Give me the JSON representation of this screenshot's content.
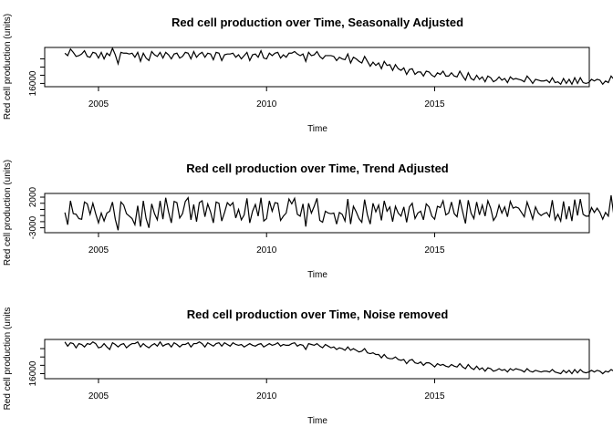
{
  "chart_data": [
    {
      "type": "line",
      "title": "Red cell production over Time, Seasonally Adjusted",
      "xlabel": "Time",
      "ylabel": "Red cell production (units)",
      "xlim": [
        2003.4,
        2019.6
      ],
      "ylim": [
        15600,
        20400
      ],
      "x_ticks": [
        2005,
        2010,
        2015
      ],
      "y_ticks": [
        16000
      ],
      "y_tick_labels": [
        "16000"
      ],
      "y_minor_ticks": [
        17000,
        18000,
        19000
      ],
      "x_start": 2004.0,
      "frequency": 12,
      "values": [
        19700,
        19400,
        20200,
        19800,
        19300,
        19400,
        19600,
        20000,
        19300,
        19200,
        19800,
        19700,
        19100,
        19800,
        19000,
        19700,
        19400,
        20300,
        19500,
        18400,
        19800,
        19700,
        19700,
        19600,
        19700,
        19200,
        19800,
        18700,
        19700,
        19100,
        18800,
        19900,
        19500,
        19300,
        19800,
        19100,
        19800,
        19500,
        19000,
        19600,
        19700,
        19100,
        19300,
        19800,
        19700,
        19000,
        19900,
        19200,
        19600,
        19800,
        19200,
        19700,
        19600,
        18900,
        19800,
        19700,
        18800,
        19500,
        19600,
        19600,
        19700,
        19200,
        19500,
        19000,
        19400,
        19800,
        18800,
        19500,
        19600,
        19200,
        20000,
        19100,
        19000,
        19700,
        19400,
        19700,
        19800,
        19100,
        19500,
        19200,
        19700,
        19700,
        19900,
        19600,
        19400,
        19600,
        18700,
        19800,
        19400,
        19500,
        19900,
        19300,
        19000,
        19400,
        19400,
        19400,
        19300,
        18800,
        19200,
        19000,
        18900,
        19600,
        18500,
        19200,
        19000,
        18700,
        18500,
        19300,
        18700,
        18100,
        18600,
        18200,
        18500,
        17800,
        18700,
        18200,
        18300,
        17600,
        18300,
        17800,
        17600,
        17900,
        17100,
        17700,
        17800,
        17100,
        17400,
        17400,
        16900,
        17500,
        17400,
        17000,
        16800,
        17300,
        17100,
        17500,
        16900,
        16900,
        17300,
        16900,
        16800,
        17500,
        16900,
        16400,
        17300,
        16600,
        16400,
        17000,
        16500,
        16800,
        16200,
        16900,
        16700,
        16200,
        16400,
        16800,
        16400,
        16600,
        16100,
        16800,
        16500,
        16600,
        16500,
        16400,
        16200,
        16900,
        16500,
        16000,
        16500,
        16400,
        16300,
        16300,
        16400,
        16100,
        16700,
        16100,
        16200,
        15900,
        16600,
        16000,
        16500,
        15900,
        16700,
        16000,
        16700,
        16100,
        16000,
        16100,
        16500,
        16300,
        16500,
        16400,
        15900,
        16300,
        16100,
        16900,
        16500,
        15600,
        16300
      ]
    },
    {
      "type": "line",
      "title": "Red cell production over Time, Trend Adjusted",
      "xlabel": "Time",
      "ylabel": "Red cell production (units)",
      "xlim": [
        2003.4,
        2019.6
      ],
      "ylim": [
        -3800,
        2600
      ],
      "x_ticks": [
        2005,
        2010,
        2015
      ],
      "y_ticks": [
        -3000,
        2000
      ],
      "y_tick_labels": [
        "-3000",
        "2000"
      ],
      "y_minor_ticks": [
        -2000,
        -1000,
        0,
        1000
      ],
      "x_start": 2004.0,
      "frequency": 12,
      "values": [
        -500,
        -2500,
        1400,
        -700,
        -800,
        -1500,
        -1600,
        1200,
        900,
        -800,
        1000,
        -700,
        -2200,
        -600,
        -1900,
        -600,
        -300,
        1200,
        -1600,
        -3400,
        1200,
        700,
        -700,
        -1100,
        -1500,
        -2500,
        600,
        -2800,
        1400,
        -1500,
        -3000,
        900,
        -700,
        -1700,
        1400,
        -1600,
        1900,
        -400,
        -2200,
        1300,
        1100,
        -1400,
        -700,
        1300,
        1900,
        -1700,
        800,
        -2000,
        1100,
        1400,
        -1200,
        900,
        -400,
        -2200,
        1200,
        1000,
        -1900,
        -500,
        1100,
        600,
        1100,
        -1400,
        0,
        -1700,
        -900,
        1800,
        -2200,
        -300,
        800,
        -1100,
        1900,
        -1900,
        -1500,
        1400,
        -300,
        1100,
        1000,
        -1800,
        -1100,
        -600,
        1700,
        900,
        1800,
        -800,
        -1100,
        900,
        -2800,
        1000,
        -600,
        500,
        1800,
        -1800,
        -2100,
        -300,
        -600,
        -700,
        -600,
        -2400,
        -500,
        -800,
        -1900,
        1700,
        -2400,
        500,
        -400,
        -1500,
        -2100,
        1600,
        -900,
        -2400,
        1000,
        -400,
        700,
        -1800,
        1400,
        -300,
        400,
        -2000,
        500,
        -600,
        -1100,
        400,
        -2100,
        400,
        1000,
        -1500,
        -600,
        -300,
        -1700,
        900,
        400,
        -1100,
        -1600,
        500,
        300,
        1400,
        -900,
        -600,
        1200,
        -700,
        -1200,
        1600,
        -400,
        -2300,
        1500,
        -600,
        -1500,
        1200,
        -900,
        700,
        -1100,
        1400,
        200,
        -1800,
        -1100,
        700,
        -600,
        400,
        -1200,
        1300,
        200,
        400,
        200,
        -500,
        -1200,
        1200,
        -100,
        -1600,
        400,
        -600,
        -1000,
        -700,
        -500,
        -1200,
        1500,
        -1700,
        -800,
        -1900,
        1300,
        -1600,
        500,
        -1900,
        1600,
        -1000,
        1700,
        -800,
        -1100,
        -1100,
        300,
        -500,
        200,
        -500,
        -1600,
        -500,
        -1100,
        2300,
        -1100,
        -2100,
        -400
      ]
    },
    {
      "type": "line",
      "title": "Red cell production over Time, Noise removed",
      "xlabel": "Time",
      "ylabel": "Red cell production (units",
      "xlim": [
        2003.4,
        2019.6
      ],
      "ylim": [
        15400,
        20100
      ],
      "x_ticks": [
        2005,
        2010,
        2015
      ],
      "y_ticks": [
        16000
      ],
      "y_tick_labels": [
        "16000"
      ],
      "y_minor_ticks": [
        17000,
        18000,
        19000
      ],
      "x_start": 2004.0,
      "frequency": 12,
      "values": [
        19800,
        19300,
        19700,
        19600,
        19100,
        19600,
        19500,
        19200,
        19600,
        19500,
        19800,
        19600,
        19100,
        19200,
        19600,
        19200,
        18900,
        19700,
        19500,
        19200,
        19500,
        19600,
        19100,
        19400,
        19600,
        19600,
        19800,
        19200,
        19600,
        19300,
        19100,
        19400,
        19600,
        19300,
        19800,
        19300,
        19500,
        19600,
        19200,
        19700,
        19500,
        19200,
        19500,
        19500,
        19700,
        19200,
        19600,
        19600,
        19800,
        19600,
        19200,
        19700,
        19500,
        19300,
        19600,
        19700,
        19300,
        19700,
        19500,
        19300,
        19700,
        19500,
        19400,
        19500,
        19200,
        19400,
        19600,
        19400,
        19300,
        19500,
        19600,
        19200,
        19400,
        19600,
        19400,
        19500,
        19700,
        19300,
        19500,
        19400,
        19400,
        19600,
        19700,
        19300,
        19500,
        19400,
        18900,
        19600,
        19500,
        19400,
        19600,
        19300,
        19100,
        19500,
        19300,
        19100,
        19200,
        18900,
        19100,
        19000,
        18800,
        19200,
        18800,
        19000,
        18800,
        18600,
        18700,
        19000,
        18500,
        18400,
        18500,
        18300,
        18300,
        17900,
        18300,
        17900,
        17800,
        17800,
        18000,
        17700,
        17600,
        17700,
        17200,
        17600,
        17700,
        17300,
        17200,
        17400,
        17000,
        17300,
        17300,
        17100,
        16800,
        17200,
        17000,
        17100,
        16900,
        16800,
        17100,
        16900,
        16800,
        17200,
        16800,
        16600,
        17100,
        16700,
        16500,
        16900,
        16500,
        16700,
        16300,
        16700,
        16600,
        16300,
        16400,
        16600,
        16400,
        16500,
        16200,
        16600,
        16400,
        16600,
        16500,
        16400,
        16200,
        16600,
        16300,
        16200,
        16400,
        16300,
        16200,
        16300,
        16300,
        16200,
        16500,
        16200,
        16100,
        16000,
        16400,
        16100,
        16400,
        16000,
        16500,
        16100,
        16500,
        16200,
        16100,
        16200,
        16400,
        16200,
        16400,
        16300,
        16000,
        16300,
        16200,
        16500,
        16300,
        16000,
        16200
      ]
    }
  ]
}
